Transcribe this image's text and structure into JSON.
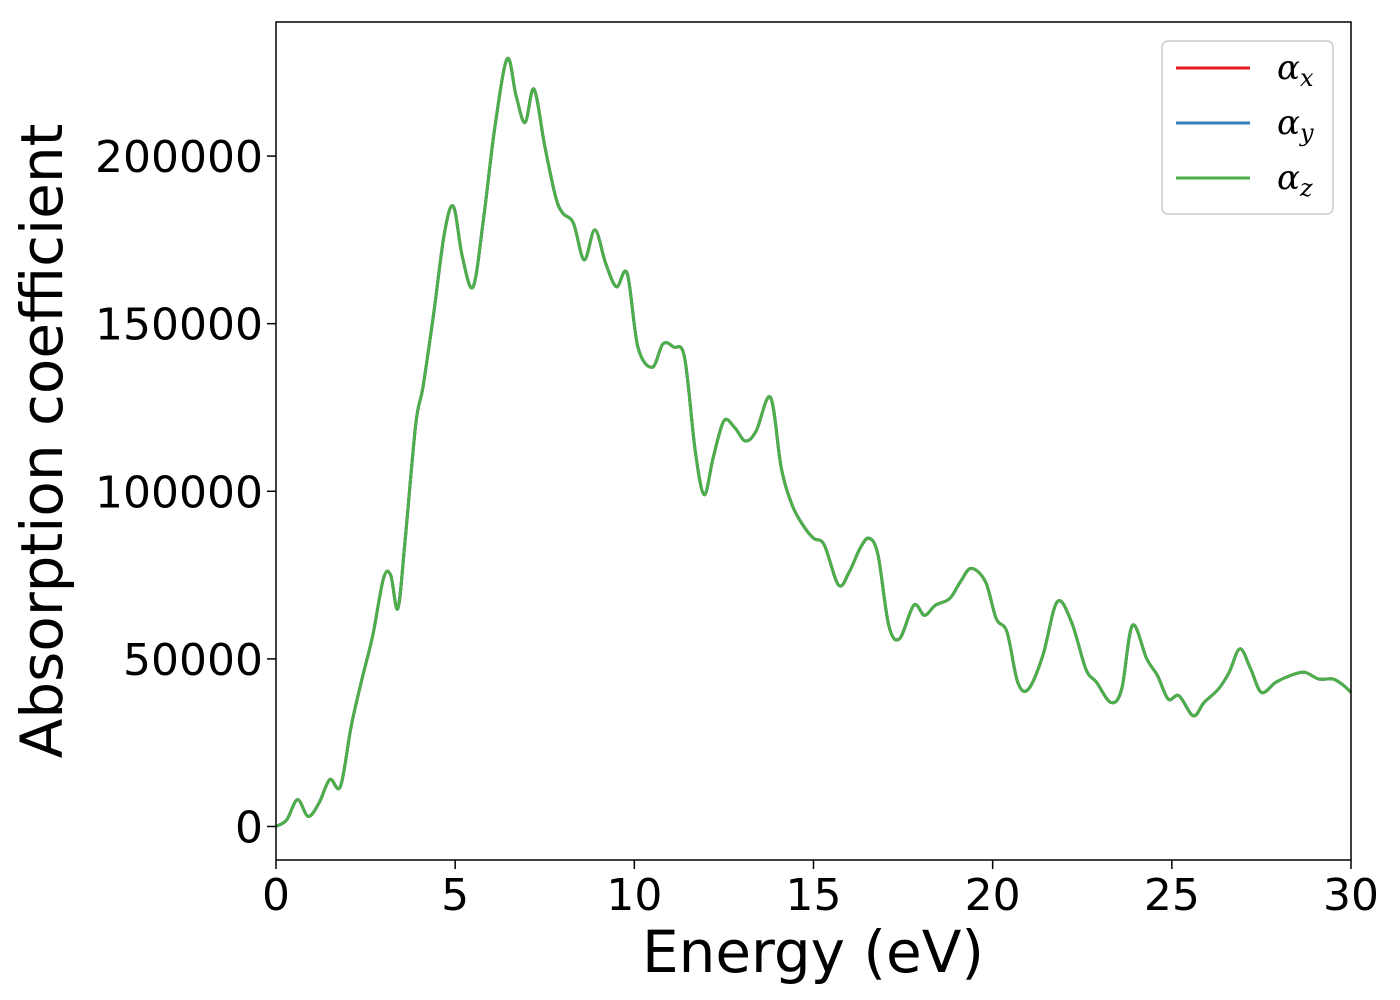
{
  "chart_data": {
    "type": "line",
    "title": "",
    "xlabel": "Energy (eV)",
    "ylabel": "Absorption coefficient",
    "xlim": [
      0,
      30
    ],
    "ylim": [
      -10000,
      240000
    ],
    "xticks": [
      0,
      5,
      10,
      15,
      20,
      25,
      30
    ],
    "yticks": [
      0,
      50000,
      100000,
      150000,
      200000
    ],
    "xtick_labels": [
      "0",
      "5",
      "10",
      "15",
      "20",
      "25",
      "30"
    ],
    "ytick_labels": [
      "0",
      "50000",
      "100000",
      "150000",
      "200000"
    ],
    "grid": false,
    "legend_position": "top-right",
    "series": [
      {
        "name": "α",
        "subscript": "x",
        "color": "#e41a1c"
      },
      {
        "name": "α",
        "subscript": "y",
        "color": "#377eb8"
      },
      {
        "name": "α",
        "subscript": "z",
        "color": "#4daf4a"
      }
    ],
    "x": [
      0,
      0.3,
      0.6,
      0.9,
      1.2,
      1.5,
      1.8,
      2.1,
      2.4,
      2.7,
      3.0,
      3.2,
      3.4,
      3.6,
      3.9,
      4.1,
      4.4,
      4.7,
      4.95,
      5.2,
      5.5,
      5.8,
      6.1,
      6.45,
      6.7,
      6.95,
      7.2,
      7.5,
      7.8,
      8.0,
      8.3,
      8.6,
      8.9,
      9.2,
      9.5,
      9.8,
      10.1,
      10.5,
      10.8,
      11.1,
      11.4,
      11.7,
      11.95,
      12.2,
      12.5,
      12.8,
      13.1,
      13.4,
      13.8,
      14.1,
      14.4,
      14.7,
      15.0,
      15.3,
      15.7,
      16.0,
      16.3,
      16.55,
      16.8,
      17.1,
      17.4,
      17.8,
      18.1,
      18.4,
      18.8,
      19.1,
      19.4,
      19.8,
      20.1,
      20.4,
      20.7,
      21.0,
      21.4,
      21.8,
      22.2,
      22.6,
      22.9,
      23.3,
      23.6,
      23.9,
      24.3,
      24.6,
      24.9,
      25.2,
      25.6,
      25.9,
      26.3,
      26.6,
      26.9,
      27.2,
      27.5,
      27.9,
      28.3,
      28.7,
      29.1,
      29.5,
      29.8,
      30.0
    ],
    "values": [
      0,
      2000,
      8000,
      3000,
      7000,
      14000,
      12000,
      30000,
      44000,
      57000,
      74000,
      75000,
      65000,
      85000,
      120000,
      131000,
      153000,
      177000,
      185000,
      170000,
      161000,
      182000,
      208000,
      229000,
      218000,
      210000,
      220000,
      203000,
      188000,
      183000,
      180000,
      169000,
      178000,
      168000,
      161000,
      165000,
      143000,
      137000,
      144000,
      143000,
      140000,
      112000,
      99000,
      110000,
      121000,
      119000,
      115000,
      118000,
      128000,
      107000,
      96000,
      90000,
      86000,
      84000,
      72000,
      76000,
      83000,
      86000,
      81000,
      60000,
      56000,
      66000,
      63000,
      66000,
      68000,
      73000,
      77000,
      73000,
      62000,
      58000,
      43000,
      41000,
      51000,
      67000,
      61000,
      47000,
      43000,
      37000,
      41000,
      60000,
      50000,
      45000,
      38000,
      39000,
      33000,
      37000,
      41000,
      46000,
      53000,
      47000,
      40000,
      43000,
      45000,
      46000,
      44000,
      44000,
      42000,
      40000
    ]
  }
}
